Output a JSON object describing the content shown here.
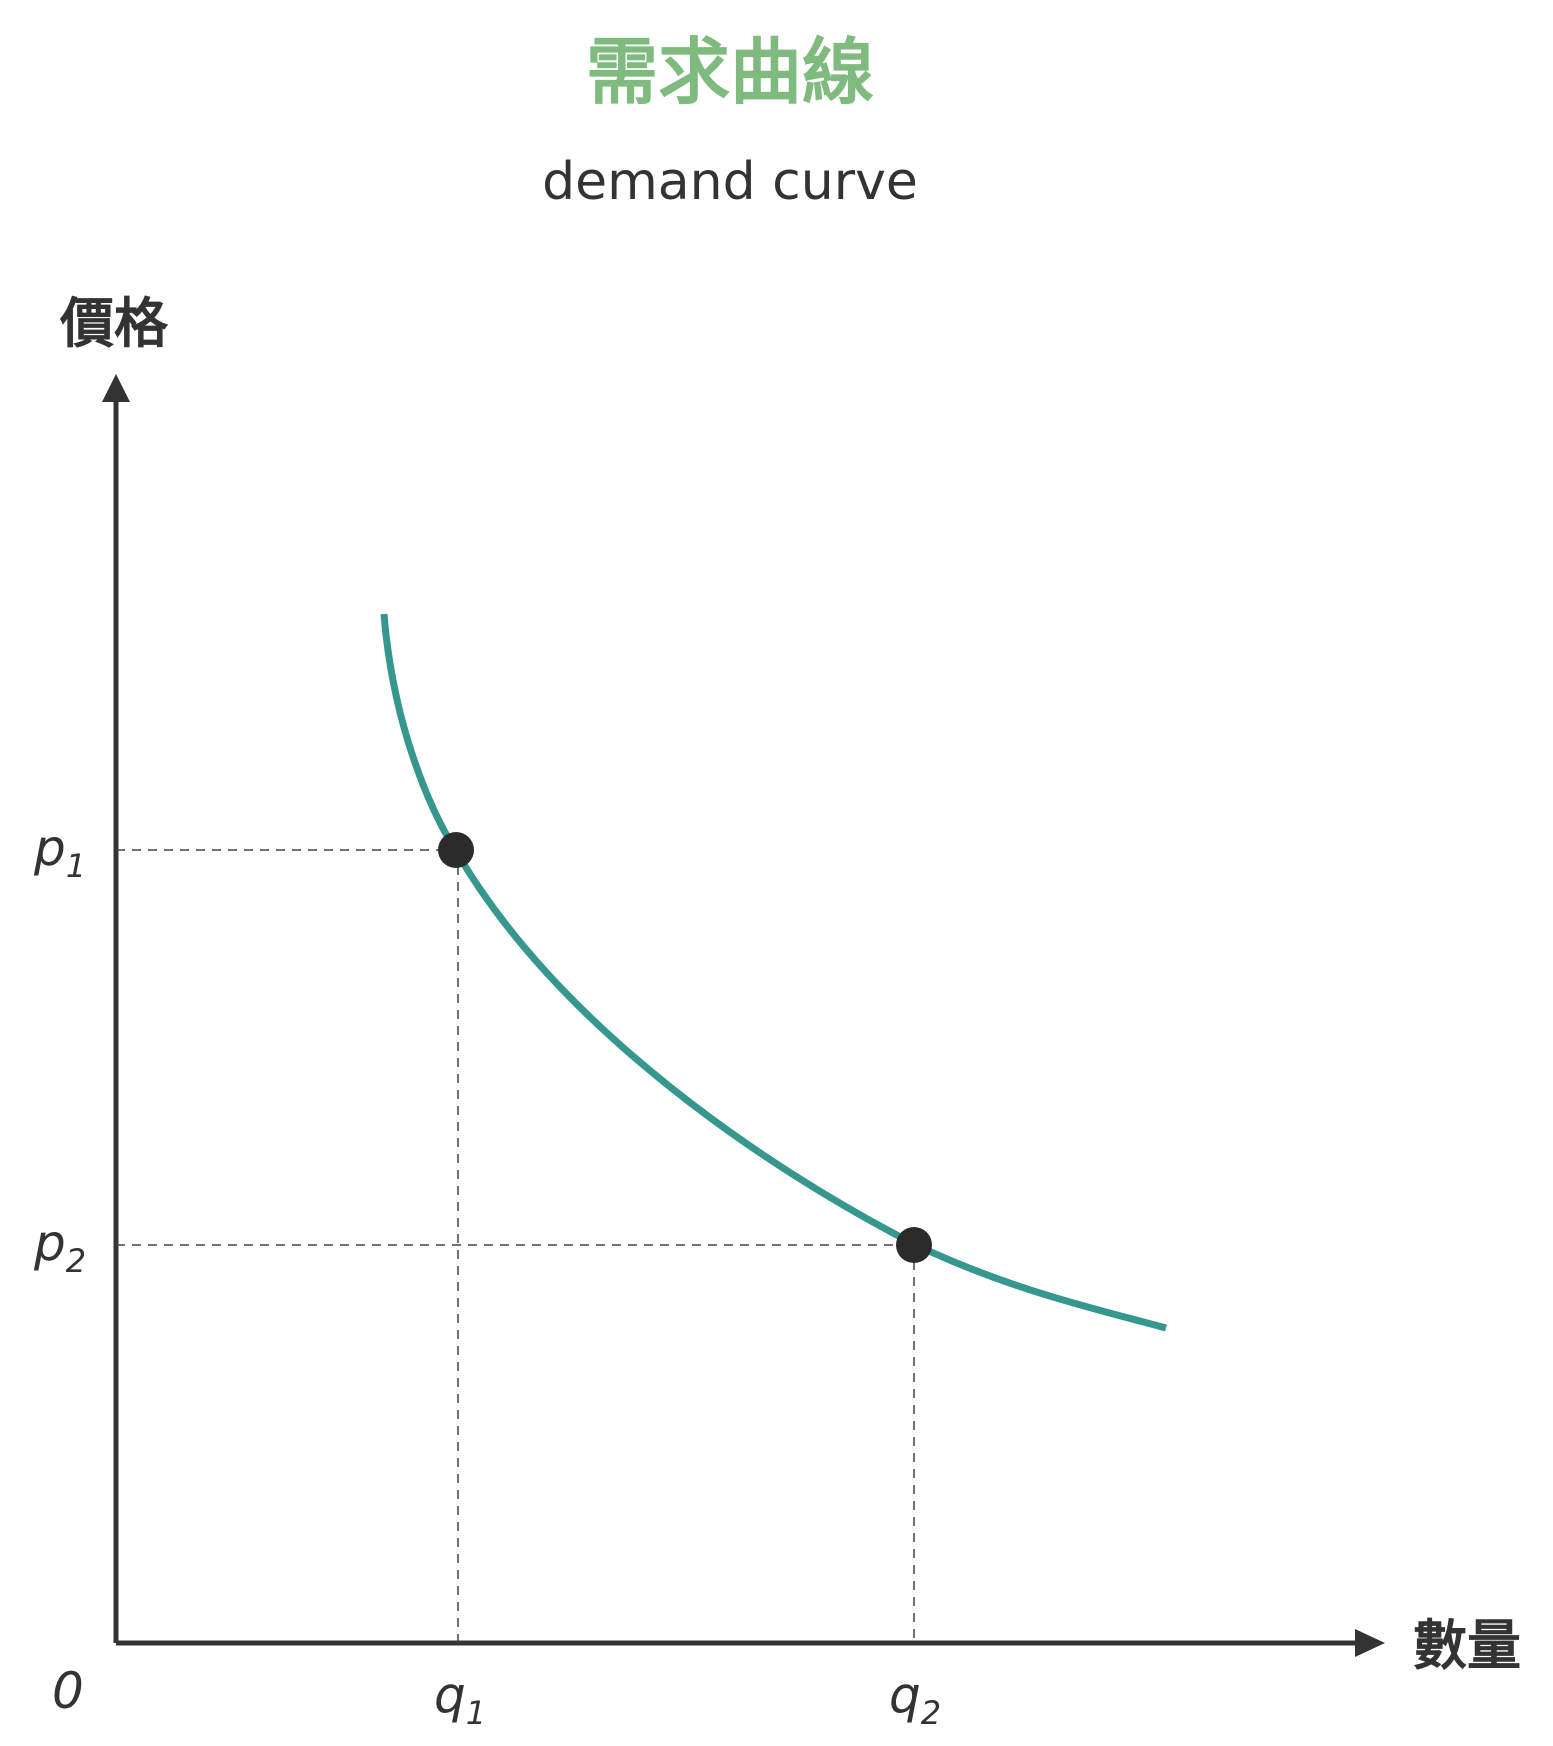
{
  "title": "需求曲線",
  "subtitle": "demand curve",
  "colors": {
    "title": "#7fbb7e",
    "curve": "#35978d",
    "ink": "#333333",
    "point": "#2b2b2b",
    "guide": "#444444"
  },
  "axes": {
    "y_label": "價格",
    "x_label": "數量",
    "origin_label": "0",
    "y_ticks": [
      {
        "main": "p",
        "sub": "1"
      },
      {
        "main": "p",
        "sub": "2"
      }
    ],
    "x_ticks": [
      {
        "main": "q",
        "sub": "1"
      },
      {
        "main": "q",
        "sub": "2"
      }
    ],
    "arrows": true
  },
  "chart_data": {
    "type": "line",
    "series": [
      {
        "description": "downward-sloping convex demand curve",
        "shape": "hyperbola"
      }
    ],
    "points": [
      {
        "x_label": "q1",
        "y_label": "p1"
      },
      {
        "x_label": "q2",
        "y_label": "p2"
      }
    ],
    "guide_lines": "dashed",
    "grid": false
  }
}
